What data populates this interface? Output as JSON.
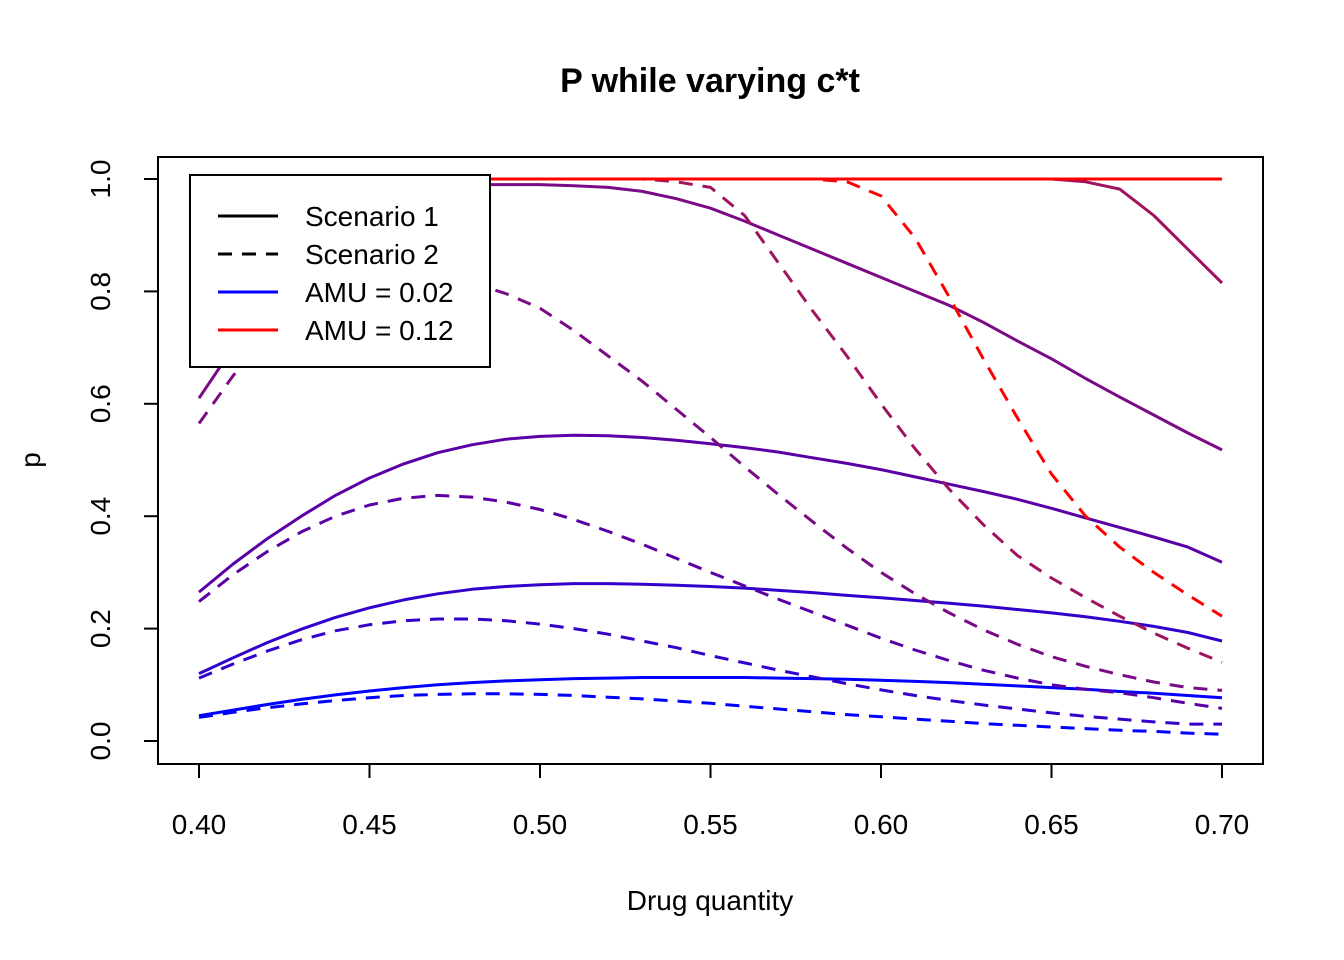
{
  "chart_data": {
    "type": "line",
    "title": "P while varying c*t",
    "xlabel": "Drug quantity",
    "ylabel": "p",
    "xlim": [
      0.4,
      0.7
    ],
    "ylim": [
      0.0,
      1.0
    ],
    "x_ticks": [
      "0.40",
      "0.45",
      "0.50",
      "0.55",
      "0.60",
      "0.65",
      "0.70"
    ],
    "y_ticks": [
      "0.0",
      "0.2",
      "0.4",
      "0.6",
      "0.8",
      "1.0"
    ],
    "grid": false,
    "legend": {
      "position": "top-left",
      "entries": [
        {
          "label": "Scenario 1",
          "style": "solid",
          "color": "#000000"
        },
        {
          "label": "Scenario 2",
          "style": "dashed",
          "color": "#000000"
        },
        {
          "label": "AMU = 0.02",
          "style": "solid",
          "color": "#0000FF"
        },
        {
          "label": "AMU = 0.12",
          "style": "solid",
          "color": "#FF0000"
        }
      ]
    },
    "x": [
      0.4,
      0.41,
      0.42,
      0.43,
      0.44,
      0.45,
      0.46,
      0.47,
      0.48,
      0.49,
      0.5,
      0.51,
      0.52,
      0.53,
      0.54,
      0.55,
      0.56,
      0.57,
      0.58,
      0.59,
      0.6,
      0.61,
      0.62,
      0.63,
      0.64,
      0.65,
      0.66,
      0.67,
      0.68,
      0.69,
      0.7
    ],
    "series": [
      {
        "scenario": 1,
        "style": "solid",
        "color": "#0000FF",
        "values": [
          0.045,
          0.055,
          0.065,
          0.074,
          0.082,
          0.089,
          0.095,
          0.1,
          0.104,
          0.107,
          0.109,
          0.111,
          0.112,
          0.113,
          0.113,
          0.113,
          0.113,
          0.112,
          0.111,
          0.11,
          0.108,
          0.106,
          0.104,
          0.101,
          0.098,
          0.095,
          0.092,
          0.088,
          0.085,
          0.081,
          0.077
        ]
      },
      {
        "scenario": 2,
        "style": "dashed",
        "color": "#0000FF",
        "values": [
          0.042,
          0.051,
          0.059,
          0.066,
          0.072,
          0.077,
          0.081,
          0.083,
          0.084,
          0.084,
          0.083,
          0.081,
          0.078,
          0.075,
          0.071,
          0.067,
          0.062,
          0.057,
          0.052,
          0.047,
          0.043,
          0.039,
          0.035,
          0.031,
          0.028,
          0.025,
          0.022,
          0.019,
          0.017,
          0.014,
          0.012
        ]
      },
      {
        "scenario": 1,
        "style": "solid",
        "color": "#3300CC",
        "values": [
          0.12,
          0.148,
          0.175,
          0.199,
          0.22,
          0.237,
          0.251,
          0.262,
          0.27,
          0.275,
          0.278,
          0.28,
          0.28,
          0.279,
          0.277,
          0.275,
          0.272,
          0.268,
          0.264,
          0.259,
          0.255,
          0.25,
          0.245,
          0.24,
          0.234,
          0.228,
          0.221,
          0.213,
          0.204,
          0.193,
          0.178
        ]
      },
      {
        "scenario": 2,
        "style": "dashed",
        "color": "#3300CC",
        "values": [
          0.112,
          0.137,
          0.16,
          0.18,
          0.196,
          0.207,
          0.214,
          0.217,
          0.217,
          0.214,
          0.208,
          0.2,
          0.19,
          0.178,
          0.166,
          0.152,
          0.139,
          0.126,
          0.114,
          0.102,
          0.091,
          0.081,
          0.072,
          0.064,
          0.057,
          0.05,
          0.044,
          0.039,
          0.034,
          0.03,
          0.03
        ]
      },
      {
        "scenario": 1,
        "style": "solid",
        "color": "#5A00A5",
        "values": [
          0.265,
          0.315,
          0.36,
          0.4,
          0.437,
          0.468,
          0.493,
          0.513,
          0.527,
          0.537,
          0.542,
          0.544,
          0.543,
          0.54,
          0.535,
          0.529,
          0.522,
          0.514,
          0.504,
          0.494,
          0.483,
          0.47,
          0.457,
          0.444,
          0.43,
          0.414,
          0.397,
          0.38,
          0.363,
          0.345,
          0.318
        ]
      },
      {
        "scenario": 2,
        "style": "dashed",
        "color": "#5A00A5",
        "values": [
          0.248,
          0.296,
          0.337,
          0.372,
          0.4,
          0.42,
          0.432,
          0.437,
          0.434,
          0.425,
          0.412,
          0.394,
          0.373,
          0.35,
          0.325,
          0.3,
          0.276,
          0.252,
          0.229,
          0.206,
          0.183,
          0.162,
          0.143,
          0.126,
          0.112,
          0.1,
          0.092,
          0.086,
          0.077,
          0.067,
          0.058
        ]
      },
      {
        "scenario": 1,
        "style": "solid",
        "color": "#7A0A85",
        "values": [
          0.61,
          0.7,
          0.78,
          0.85,
          0.91,
          0.95,
          0.975,
          0.987,
          0.99,
          0.99,
          0.99,
          0.988,
          0.985,
          0.978,
          0.965,
          0.948,
          0.925,
          0.9,
          0.875,
          0.85,
          0.825,
          0.8,
          0.775,
          0.745,
          0.712,
          0.68,
          0.645,
          0.612,
          0.58,
          0.548,
          0.518
        ]
      },
      {
        "scenario": 2,
        "style": "dashed",
        "color": "#7A0A85",
        "values": [
          0.565,
          0.65,
          0.72,
          0.77,
          0.81,
          0.83,
          0.835,
          0.83,
          0.815,
          0.796,
          0.77,
          0.73,
          0.685,
          0.64,
          0.59,
          0.54,
          0.488,
          0.438,
          0.39,
          0.343,
          0.3,
          0.262,
          0.228,
          0.198,
          0.172,
          0.15,
          0.133,
          0.118,
          0.105,
          0.095,
          0.09
        ]
      },
      {
        "scenario": 1,
        "style": "solid",
        "color": "#A0145F",
        "values": [
          1.0,
          1.0,
          1.0,
          1.0,
          1.0,
          1.0,
          1.0,
          1.0,
          1.0,
          1.0,
          1.0,
          1.0,
          1.0,
          1.0,
          1.0,
          1.0,
          1.0,
          1.0,
          1.0,
          1.0,
          1.0,
          1.0,
          1.0,
          1.0,
          1.0,
          1.0,
          0.995,
          0.982,
          0.935,
          0.875,
          0.815
        ]
      },
      {
        "scenario": 2,
        "style": "dashed",
        "color": "#A0145F",
        "values": [
          1.0,
          1.0,
          1.0,
          1.0,
          1.0,
          1.0,
          1.0,
          1.0,
          1.0,
          1.0,
          1.0,
          1.0,
          1.0,
          1.0,
          0.995,
          0.985,
          0.935,
          0.85,
          0.765,
          0.685,
          0.6,
          0.52,
          0.448,
          0.385,
          0.33,
          0.29,
          0.255,
          0.222,
          0.192,
          0.165,
          0.14
        ]
      },
      {
        "scenario": 1,
        "style": "solid",
        "color": "#FF0000",
        "values": [
          1.0,
          1.0,
          1.0,
          1.0,
          1.0,
          1.0,
          1.0,
          1.0,
          1.0,
          1.0,
          1.0,
          1.0,
          1.0,
          1.0,
          1.0,
          1.0,
          1.0,
          1.0,
          1.0,
          1.0,
          1.0,
          1.0,
          1.0,
          1.0,
          1.0,
          1.0,
          1.0,
          1.0,
          1.0,
          1.0,
          1.0
        ]
      },
      {
        "scenario": 2,
        "style": "dashed",
        "color": "#FF0000",
        "values": [
          1.0,
          1.0,
          1.0,
          1.0,
          1.0,
          1.0,
          1.0,
          1.0,
          1.0,
          1.0,
          1.0,
          1.0,
          1.0,
          1.0,
          1.0,
          1.0,
          1.0,
          1.0,
          1.0,
          0.995,
          0.97,
          0.895,
          0.79,
          0.68,
          0.575,
          0.475,
          0.4,
          0.345,
          0.3,
          0.26,
          0.222
        ]
      }
    ]
  }
}
